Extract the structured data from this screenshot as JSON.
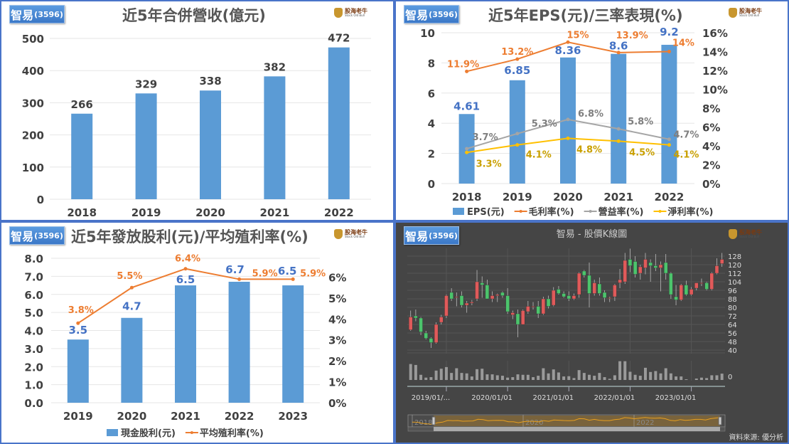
{
  "badge": {
    "name": "智易",
    "code": "(3596)"
  },
  "logo": {
    "name": "股海老牛",
    "sub": "Stock Old Bull"
  },
  "colors": {
    "bar": "#5b9bd5",
    "bar_label": "#4472c4",
    "gross": "#ed7d31",
    "operating": "#a5a5a5",
    "operating_label": "#7f7f7f",
    "net": "#ffc000",
    "net_label": "#c9a000",
    "panel_border": "#4a74c9",
    "candle_up": "#e05a5a",
    "candle_down": "#4cc46c"
  },
  "source": "資料來源: 優分析",
  "chart_data": [
    {
      "type": "bar",
      "title": "近5年合併營收(億元)",
      "categories": [
        "2018",
        "2019",
        "2020",
        "2021",
        "2022"
      ],
      "values": [
        266,
        329,
        338,
        382,
        472
      ],
      "ylim": [
        0,
        500
      ],
      "yticks": [
        "0",
        "100",
        "200",
        "300",
        "400",
        "500"
      ],
      "grid": true
    },
    {
      "type": "bar+line",
      "title": "近5年EPS(元)/三率表現(%)",
      "categories": [
        "2018",
        "2019",
        "2020",
        "2021",
        "2022"
      ],
      "ylim": [
        0,
        10
      ],
      "yticks": [
        "0",
        "2",
        "4",
        "6",
        "8",
        "10"
      ],
      "y2lim": [
        0,
        16
      ],
      "y2ticks": [
        "0%",
        "2%",
        "4%",
        "6%",
        "8%",
        "10%",
        "12%",
        "14%",
        "16%"
      ],
      "legend": "bottom",
      "grid": true,
      "series": [
        {
          "name": "EPS(元)",
          "kind": "bar",
          "values": [
            4.61,
            6.85,
            8.36,
            8.6,
            9.2
          ],
          "labels": [
            "4.61",
            "6.85",
            "8.36",
            "8.6",
            "9.2"
          ]
        },
        {
          "name": "毛利率(%)",
          "kind": "line",
          "axis": "right",
          "values": [
            11.9,
            13.2,
            15,
            13.9,
            14
          ],
          "labels": [
            "11.9%",
            "13.2%",
            "15%",
            "13.9%",
            "14%"
          ]
        },
        {
          "name": "營益率(%)",
          "kind": "line",
          "axis": "right",
          "values": [
            3.7,
            5.3,
            6.8,
            5.8,
            4.7
          ],
          "labels": [
            "3.7%",
            "5.3%",
            "6.8%",
            "5.8%",
            "4.7%"
          ]
        },
        {
          "name": "淨利率(%)",
          "kind": "line",
          "axis": "right",
          "values": [
            3.3,
            4.1,
            4.8,
            4.5,
            4.1
          ],
          "labels": [
            "3.3%",
            "4.1%",
            "4.8%",
            "4.5%",
            "4.1%"
          ]
        }
      ]
    },
    {
      "type": "bar+line",
      "title": "近5年發放股利(元)/平均殖利率(%)",
      "categories": [
        "2019",
        "2020",
        "2021",
        "2022",
        "2023"
      ],
      "ylim": [
        0,
        8
      ],
      "yticks": [
        "0.0",
        "1.0",
        "2.0",
        "3.0",
        "4.0",
        "5.0",
        "6.0",
        "7.0",
        "8.0"
      ],
      "y2lim": [
        0,
        6.9
      ],
      "y2ticks": [
        "0%",
        "1%",
        "2%",
        "3%",
        "4%",
        "5%",
        "6%"
      ],
      "legend": "bottom",
      "grid": true,
      "series": [
        {
          "name": "現金股利(元)",
          "kind": "bar",
          "values": [
            3.5,
            4.7,
            6.5,
            6.7,
            6.5
          ],
          "labels": [
            "3.5",
            "4.7",
            "6.5",
            "6.7",
            "6.5"
          ]
        },
        {
          "name": "平均殖利率(%)",
          "kind": "line",
          "axis": "right",
          "values": [
            3.8,
            5.5,
            6.4,
            5.9,
            5.9
          ],
          "labels": [
            "3.8%",
            "5.5%",
            "6.4%",
            "5.9%",
            "5.9%"
          ]
        }
      ]
    },
    {
      "type": "candlestick",
      "title": "智易 - 股價K線圖",
      "ylim": [
        40,
        128
      ],
      "yticks": [
        "40",
        "48",
        "56",
        "64",
        "72",
        "80",
        "88",
        "96",
        "104",
        "112",
        "120",
        "128"
      ],
      "volume_ticks": [
        "0"
      ],
      "xticks": [
        "2019/01/...",
        "2020/01/01",
        "2021/01/01",
        "2022/01/01",
        "2023/01/01"
      ],
      "navigator_labels": [
        "2018",
        "2020",
        "2022"
      ],
      "grid": true,
      "candles": [
        [
          "2018-06",
          59,
          77,
          58,
          71
        ],
        [
          "2018-07",
          72,
          78,
          67,
          70
        ],
        [
          "2018-08",
          70,
          71,
          54,
          57
        ],
        [
          "2018-09",
          56,
          58,
          50,
          51
        ],
        [
          "2018-10",
          51,
          52,
          42,
          47
        ],
        [
          "2018-11",
          47,
          66,
          46,
          64
        ],
        [
          "2018-12",
          66,
          73,
          64,
          71
        ],
        [
          "2019-01",
          72,
          92,
          70,
          91
        ],
        [
          "2019-02",
          94,
          98,
          86,
          88
        ],
        [
          "2019-03",
          90,
          94,
          81,
          90
        ],
        [
          "2019-04",
          91,
          95,
          80,
          82
        ],
        [
          "2019-05",
          82,
          86,
          75,
          84
        ],
        [
          "2019-06",
          84,
          87,
          82,
          85
        ],
        [
          "2019-07",
          88,
          115,
          86,
          104
        ],
        [
          "2019-08",
          103,
          109,
          89,
          101
        ],
        [
          "2019-09",
          101,
          106,
          88,
          88
        ],
        [
          "2019-10",
          88,
          95,
          85,
          91
        ],
        [
          "2019-11",
          91,
          93,
          85,
          92
        ],
        [
          "2019-12",
          94,
          95,
          89,
          91
        ],
        [
          "2020-01",
          91,
          98,
          74,
          76
        ],
        [
          "2020-02",
          73,
          77,
          69,
          75
        ],
        [
          "2020-03",
          74,
          78,
          52,
          64
        ],
        [
          "2020-04",
          64,
          78,
          64,
          77
        ],
        [
          "2020-05",
          76,
          86,
          74,
          81
        ],
        [
          "2020-06",
          81,
          85,
          78,
          81
        ],
        [
          "2020-07",
          81,
          86,
          70,
          74
        ],
        [
          "2020-08",
          74,
          90,
          73,
          88
        ],
        [
          "2020-09",
          88,
          91,
          79,
          81
        ],
        [
          "2020-10",
          82,
          99,
          81,
          96
        ],
        [
          "2020-11",
          97,
          100,
          92,
          93
        ],
        [
          "2020-12",
          93,
          95,
          89,
          90
        ],
        [
          "2021-01",
          91,
          95,
          86,
          88
        ],
        [
          "2021-02",
          88,
          93,
          87,
          91
        ],
        [
          "2021-03",
          92,
          113,
          89,
          112
        ],
        [
          "2021-04",
          114,
          115,
          108,
          110
        ],
        [
          "2021-05",
          110,
          122,
          80,
          93
        ],
        [
          "2021-06",
          93,
          106,
          91,
          103
        ],
        [
          "2021-07",
          102,
          108,
          91,
          93
        ],
        [
          "2021-08",
          94,
          96,
          85,
          89
        ],
        [
          "2021-09",
          89,
          90,
          85,
          89
        ],
        [
          "2021-10",
          90,
          102,
          86,
          101
        ],
        [
          "2021-11",
          103,
          116,
          98,
          106
        ],
        [
          "2021-12",
          104,
          131,
          102,
          124
        ],
        [
          "2022-01",
          125,
          135,
          113,
          119
        ],
        [
          "2022-02",
          123,
          128,
          108,
          111
        ],
        [
          "2022-03",
          112,
          120,
          106,
          118
        ],
        [
          "2022-04",
          117,
          131,
          111,
          125
        ],
        [
          "2022-05",
          122,
          125,
          104,
          119
        ],
        [
          "2022-06",
          119,
          130,
          114,
          117
        ],
        [
          "2022-07",
          117,
          123,
          95,
          120
        ],
        [
          "2022-08",
          122,
          130,
          106,
          112
        ],
        [
          "2022-09",
          112,
          113,
          88,
          92
        ],
        [
          "2022-10",
          90,
          101,
          82,
          87
        ],
        [
          "2022-11",
          87,
          102,
          86,
          101
        ],
        [
          "2022-12",
          101,
          105,
          91,
          92
        ],
        [
          "2023-01",
          92,
          99,
          91,
          97
        ],
        [
          "2023-02",
          98,
          103,
          96,
          103
        ],
        [
          "2023-03",
          103,
          107,
          100,
          103
        ],
        [
          "2023-04",
          103,
          104,
          96,
          97
        ],
        [
          "2023-05",
          97,
          113,
          96,
          112
        ],
        [
          "2023-06",
          112,
          126,
          111,
          119
        ],
        [
          "2023-07",
          121,
          131,
          118,
          125
        ]
      ],
      "volume_relative": [
        68,
        64,
        22,
        10,
        12,
        40,
        48,
        55,
        30,
        50,
        30,
        28,
        15,
        46,
        48,
        24,
        24,
        20,
        18,
        10,
        12,
        24,
        22,
        22,
        12,
        18,
        50,
        28,
        45,
        32,
        15,
        16,
        8,
        42,
        30,
        22,
        18,
        30,
        12,
        5,
        20,
        80,
        80,
        35,
        22,
        18,
        52,
        34,
        38,
        28,
        50,
        28,
        15,
        15,
        3,
        0,
        6,
        10,
        8,
        20,
        20,
        27
      ]
    }
  ]
}
